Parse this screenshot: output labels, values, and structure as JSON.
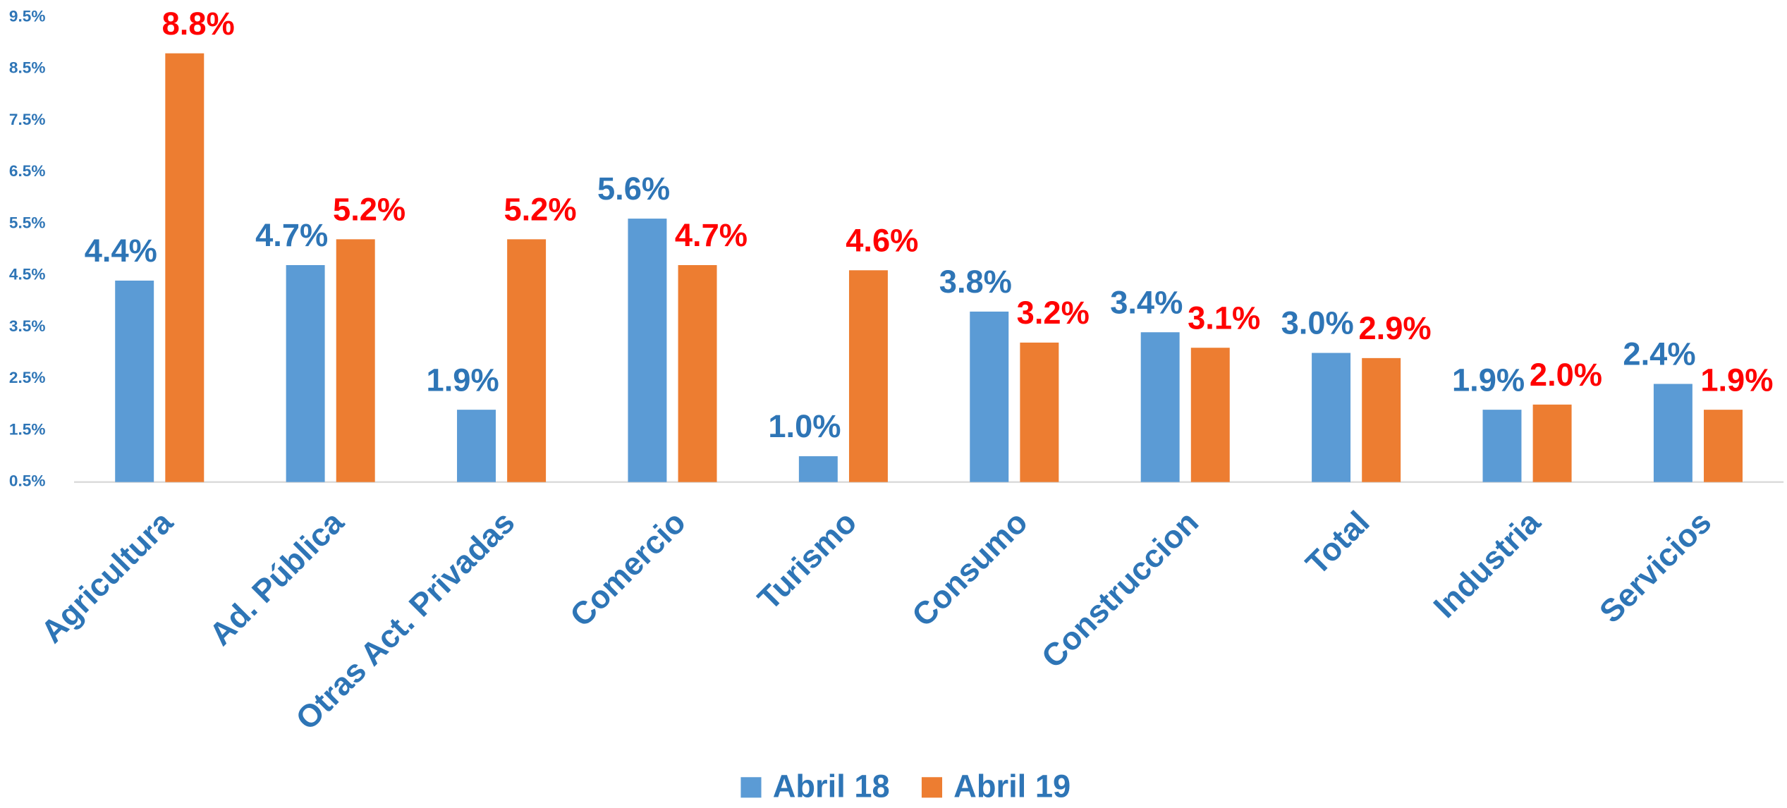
{
  "chart_data": {
    "type": "bar",
    "categories": [
      "Agricultura",
      "Ad. Pública",
      "Otras Act. Privadas",
      "Comercio",
      "Turismo",
      "Consumo",
      "Construccion",
      "Total",
      "Industria",
      "Servicios"
    ],
    "series": [
      {
        "name": "Abril 18",
        "color": "#5B9BD5",
        "label_color": "#2E75B6",
        "values": [
          4.4,
          4.7,
          1.9,
          5.6,
          1.0,
          3.8,
          3.4,
          3.0,
          1.9,
          2.4
        ],
        "value_labels": [
          "4.4%",
          "4.7%",
          "1.9%",
          "5.6%",
          "1.0%",
          "3.8%",
          "3.4%",
          "3.0%",
          "1.9%",
          "2.4%"
        ]
      },
      {
        "name": "Abril 19",
        "color": "#ED7D31",
        "label_color": "#FF0000",
        "values": [
          8.8,
          5.2,
          5.2,
          4.7,
          4.6,
          3.2,
          3.1,
          2.9,
          2.0,
          1.9
        ],
        "value_labels": [
          "8.8%",
          "5.2%",
          "5.2%",
          "4.7%",
          "4.6%",
          "3.2%",
          "3.1%",
          "2.9%",
          "2.0%",
          "1.9%"
        ]
      }
    ],
    "ylim": [
      0.5,
      9.5
    ],
    "yticks": [
      {
        "value": 0.5,
        "label": "0.5%"
      },
      {
        "value": 1.5,
        "label": "1.5%"
      },
      {
        "value": 2.5,
        "label": "2.5%"
      },
      {
        "value": 3.5,
        "label": "3.5%"
      },
      {
        "value": 4.5,
        "label": "4.5%"
      },
      {
        "value": 5.5,
        "label": "5.5%"
      },
      {
        "value": 6.5,
        "label": "6.5%"
      },
      {
        "value": 7.5,
        "label": "7.5%"
      },
      {
        "value": 8.5,
        "label": "8.5%"
      },
      {
        "value": 9.5,
        "label": "9.5%"
      }
    ],
    "grid": false,
    "legend": "bottom"
  }
}
